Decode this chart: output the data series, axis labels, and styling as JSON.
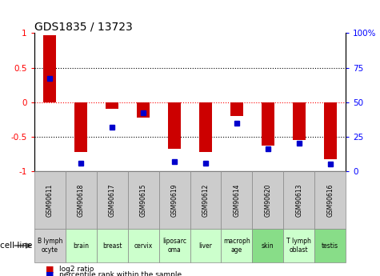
{
  "title": "GDS1835 / 13723",
  "samples": [
    "GSM90611",
    "GSM90618",
    "GSM90617",
    "GSM90615",
    "GSM90619",
    "GSM90612",
    "GSM90614",
    "GSM90620",
    "GSM90613",
    "GSM90616"
  ],
  "cell_lines": [
    "B lymph\nocyte",
    "brain",
    "breast",
    "cervix",
    "liposarc\noma",
    "liver",
    "macroph\nage",
    "skin",
    "T lymph\noblast",
    "testis"
  ],
  "cell_line_colors": [
    "#d0d0d0",
    "#ccffcc",
    "#ccffcc",
    "#ccffcc",
    "#ccffcc",
    "#ccffcc",
    "#ccffcc",
    "#88dd88",
    "#ccffcc",
    "#88dd88"
  ],
  "gsm_box_color": "#cccccc",
  "log2_ratio": [
    0.97,
    -0.72,
    -0.1,
    -0.22,
    -0.68,
    -0.72,
    -0.2,
    -0.63,
    -0.55,
    -0.83
  ],
  "pct_rank": [
    0.67,
    0.06,
    0.32,
    0.42,
    0.07,
    0.06,
    0.35,
    0.16,
    0.2,
    0.05
  ],
  "bar_color": "#cc0000",
  "dot_color": "#0000cc",
  "ylim": [
    -1,
    1
  ],
  "right_ylim": [
    0,
    100
  ],
  "right_yticks": [
    0,
    25,
    50,
    75,
    100
  ],
  "right_yticklabels": [
    "0",
    "25",
    "50",
    "75",
    "100%"
  ],
  "left_yticks": [
    -1,
    -0.5,
    0,
    0.5,
    1
  ],
  "left_yticklabels": [
    "-1",
    "-0.5",
    "0",
    "0.5",
    "1"
  ],
  "legend_items": [
    "log2 ratio",
    "percentile rank within the sample"
  ],
  "legend_colors": [
    "#cc0000",
    "#0000cc"
  ]
}
